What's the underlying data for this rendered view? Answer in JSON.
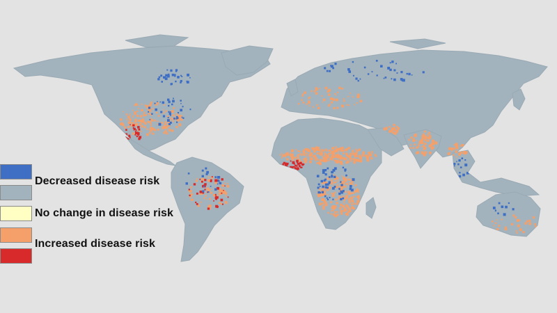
{
  "map": {
    "background": "#e3e3e3",
    "land_color": "#a3b3bd"
  },
  "legend": {
    "items": [
      {
        "color": "#3f6fc4"
      },
      {
        "color": "#a3b3bd"
      },
      {
        "color": "#ffffc4"
      },
      {
        "color": "#f5a06a"
      },
      {
        "color": "#d82a2a"
      }
    ],
    "labels": [
      "Decreased disease risk",
      "No change in disease risk",
      "Increased disease risk"
    ]
  },
  "categories": {
    "decreased": "#3f6fc4",
    "increased": "#f5a06a",
    "strong_increase": "#d82a2a"
  }
}
